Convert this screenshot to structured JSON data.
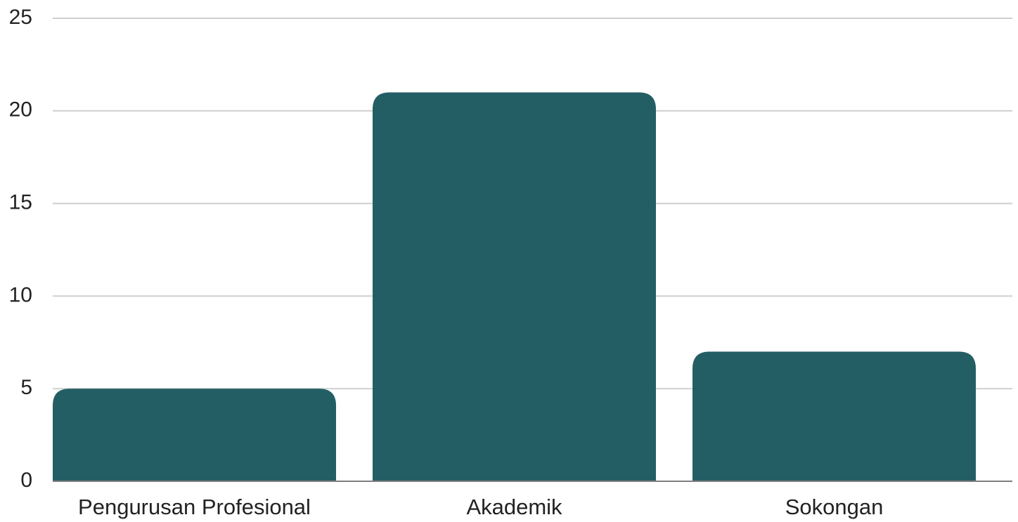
{
  "chart_data": {
    "type": "bar",
    "categories": [
      "Pengurusan Profesional",
      "Akademik",
      "Sokongan"
    ],
    "values": [
      5,
      21,
      7
    ],
    "ylim": [
      0,
      25
    ],
    "yticks": [
      0,
      5,
      10,
      15,
      20,
      25
    ],
    "grid": true,
    "legend": "none",
    "colors": {
      "bar": "#245e65",
      "grid": "#cfcfcf",
      "baseline": "#7f7f7f",
      "text": "#222222"
    }
  }
}
